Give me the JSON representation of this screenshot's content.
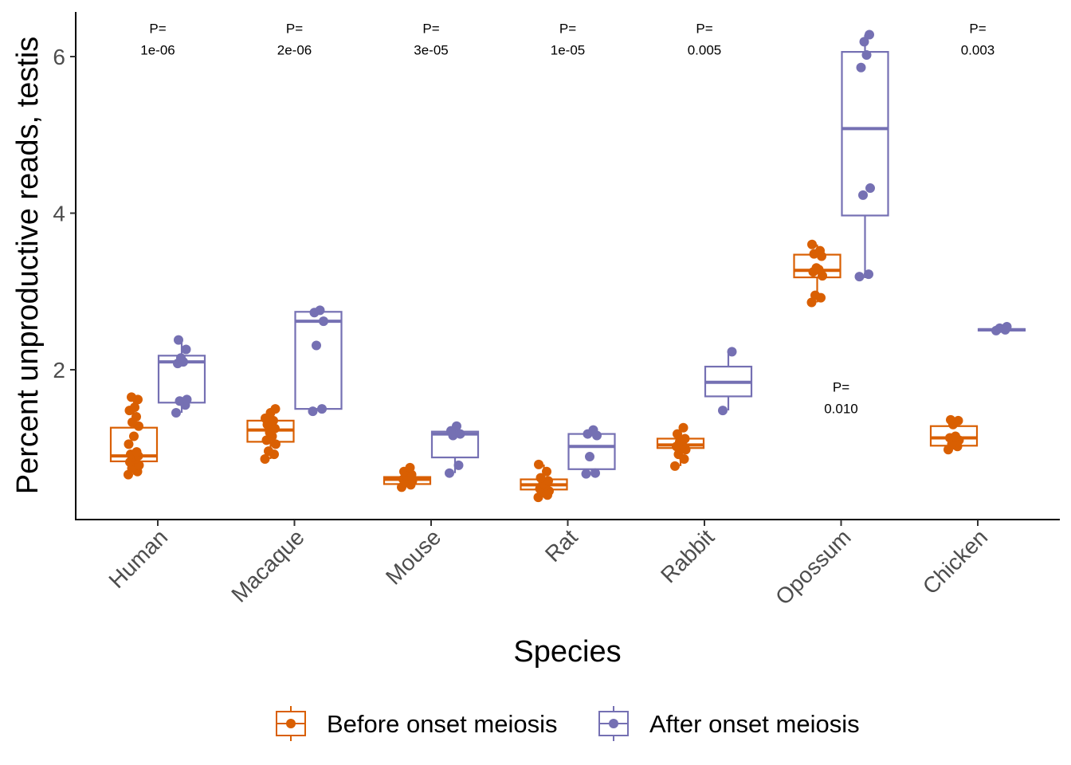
{
  "chart_data": {
    "type": "box",
    "xlabel": "Species",
    "ylabel": "Percent unproductive reads, testis",
    "ylim": [
      0.2,
      6.55
    ],
    "yticks": [
      2,
      4,
      6
    ],
    "categories": [
      "Human",
      "Macaque",
      "Mouse",
      "Rat",
      "Rabbit",
      "Opossum",
      "Chicken"
    ],
    "legend_position": "bottom",
    "series": [
      {
        "name": "Before onset meiosis",
        "color": "#d95f02",
        "boxes": [
          {
            "q1": 0.83,
            "median": 0.9,
            "q3": 1.26,
            "whisker_low": 0.66,
            "whisker_high": 1.65
          },
          {
            "q1": 1.08,
            "median": 1.23,
            "q3": 1.35,
            "whisker_low": 0.86,
            "whisker_high": 1.5
          },
          {
            "q1": 0.54,
            "median": 0.6,
            "q3": 0.63,
            "whisker_low": 0.5,
            "whisker_high": 0.75
          },
          {
            "q1": 0.47,
            "median": 0.53,
            "q3": 0.6,
            "whisker_low": 0.37,
            "whisker_high": 0.79
          },
          {
            "q1": 1.0,
            "median": 1.04,
            "q3": 1.12,
            "whisker_low": 0.77,
            "whisker_high": 1.26
          },
          {
            "q1": 3.18,
            "median": 3.27,
            "q3": 3.47,
            "whisker_low": 2.86,
            "whisker_high": 3.6
          },
          {
            "q1": 1.03,
            "median": 1.13,
            "q3": 1.28,
            "whisker_low": 0.98,
            "whisker_high": 1.36
          }
        ],
        "points": [
          [
            0.66,
            0.7,
            0.74,
            0.78,
            0.82,
            0.86,
            0.88,
            0.9,
            0.92,
            0.95,
            1.05,
            1.15,
            1.28,
            1.33,
            1.4,
            1.48,
            1.52,
            1.62,
            1.65
          ],
          [
            0.86,
            0.92,
            0.96,
            1.05,
            1.1,
            1.15,
            1.2,
            1.25,
            1.3,
            1.35,
            1.38,
            1.45,
            1.5
          ],
          [
            0.5,
            0.53,
            0.56,
            0.58,
            0.6,
            0.62,
            0.64,
            0.66,
            0.7,
            0.75
          ],
          [
            0.37,
            0.4,
            0.43,
            0.45,
            0.48,
            0.52,
            0.55,
            0.58,
            0.62,
            0.7,
            0.79
          ],
          [
            0.77,
            0.86,
            0.92,
            0.98,
            1.02,
            1.05,
            1.08,
            1.12,
            1.18,
            1.26
          ],
          [
            2.86,
            2.92,
            2.95,
            3.2,
            3.25,
            3.28,
            3.3,
            3.45,
            3.48,
            3.52,
            3.6
          ],
          [
            0.98,
            1.02,
            1.05,
            1.1,
            1.13,
            1.15,
            1.3,
            1.35,
            1.36
          ]
        ]
      },
      {
        "name": "After onset meiosis",
        "color": "#7570b3",
        "boxes": [
          {
            "q1": 1.58,
            "median": 2.1,
            "q3": 2.18,
            "whisker_low": 1.45,
            "whisker_high": 2.38
          },
          {
            "q1": 1.5,
            "median": 2.62,
            "q3": 2.74,
            "whisker_low": 1.47,
            "whisker_high": 2.76
          },
          {
            "q1": 0.88,
            "median": 1.18,
            "q3": 1.21,
            "whisker_low": 0.68,
            "whisker_high": 1.28
          },
          {
            "q1": 0.73,
            "median": 1.02,
            "q3": 1.18,
            "whisker_low": 0.67,
            "whisker_high": 1.23
          },
          {
            "q1": 1.66,
            "median": 1.84,
            "q3": 2.04,
            "whisker_low": 1.48,
            "whisker_high": 2.23
          },
          {
            "q1": 3.97,
            "median": 5.08,
            "q3": 6.06,
            "whisker_low": 3.17,
            "whisker_high": 6.28
          },
          {
            "q1": 2.5,
            "median": 2.51,
            "q3": 2.52,
            "whisker_low": 2.49,
            "whisker_high": 2.55
          }
        ],
        "points": [
          [
            1.45,
            1.55,
            1.6,
            1.62,
            2.08,
            2.1,
            2.15,
            2.26,
            2.38
          ],
          [
            1.47,
            1.5,
            2.31,
            2.62,
            2.73,
            2.76
          ],
          [
            0.68,
            0.78,
            1.16,
            1.18,
            1.22,
            1.28
          ],
          [
            0.67,
            0.68,
            0.89,
            1.16,
            1.18,
            1.23
          ],
          [
            1.48,
            2.23
          ],
          [
            3.19,
            3.22,
            4.23,
            4.32,
            5.86,
            6.02,
            6.19,
            6.28
          ],
          [
            2.5,
            2.51,
            2.53,
            2.55
          ]
        ]
      }
    ],
    "annotations": [
      {
        "category": "Human",
        "label": "P=",
        "value": "1e-06",
        "y": 6.3
      },
      {
        "category": "Macaque",
        "label": "P=",
        "value": "2e-06",
        "y": 6.3
      },
      {
        "category": "Mouse",
        "label": "P=",
        "value": "3e-05",
        "y": 6.3
      },
      {
        "category": "Rat",
        "label": "P=",
        "value": "1e-05",
        "y": 6.3
      },
      {
        "category": "Rabbit",
        "label": "P=",
        "value": "0.005",
        "y": 6.3
      },
      {
        "category": "Opossum",
        "label": "P=",
        "value": "0.010",
        "y": 1.72
      },
      {
        "category": "Chicken",
        "label": "P=",
        "value": "0.003",
        "y": 6.3
      }
    ]
  }
}
